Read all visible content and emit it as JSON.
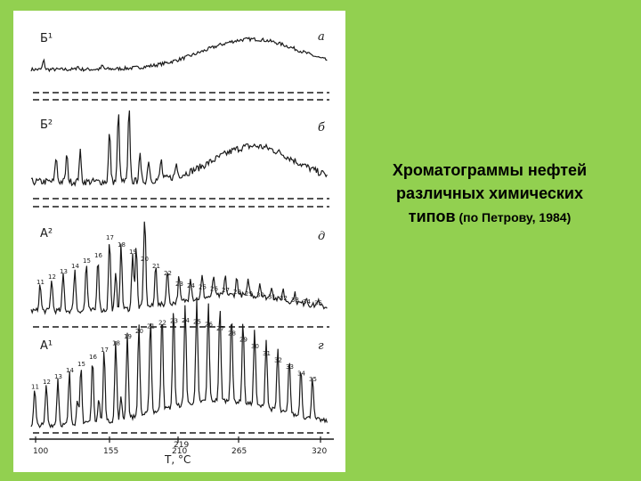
{
  "caption": {
    "line1": "Хроматограммы нефтей",
    "line2": "различных химических",
    "line3_main": "типов",
    "line3_ref": " (по Петрову, 1984)"
  },
  "panels": [
    {
      "type_label": "Б¹",
      "letter": "а",
      "peaks": []
    },
    {
      "type_label": "Б²",
      "letter": "б",
      "peaks": []
    },
    {
      "type_label": "А²",
      "letter": "д",
      "peaks": [
        "11",
        "12",
        "13",
        "14",
        "15",
        "16",
        "17",
        "18",
        "19",
        "20",
        "21",
        "22",
        "23",
        "24",
        "25",
        "26",
        "27",
        "28",
        "29",
        "30",
        "31",
        "32",
        "33",
        "34",
        "35"
      ]
    },
    {
      "type_label": "А¹",
      "letter": "г",
      "peaks": [
        "11",
        "12",
        "13",
        "14",
        "15",
        "16",
        "17",
        "18",
        "19",
        "20",
        "21",
        "22",
        "23",
        "24",
        "25",
        "26",
        "27",
        "28",
        "29",
        "30",
        "31",
        "32",
        "33",
        "34",
        "35"
      ]
    }
  ],
  "axis": {
    "ticks": [
      "100",
      "155",
      "210",
      "265",
      "320"
    ],
    "extra_tick": "219",
    "label": "T, °C"
  },
  "colors": {
    "background": "#92D050",
    "figure": "#ffffff",
    "ink": "#1a1a1a"
  }
}
